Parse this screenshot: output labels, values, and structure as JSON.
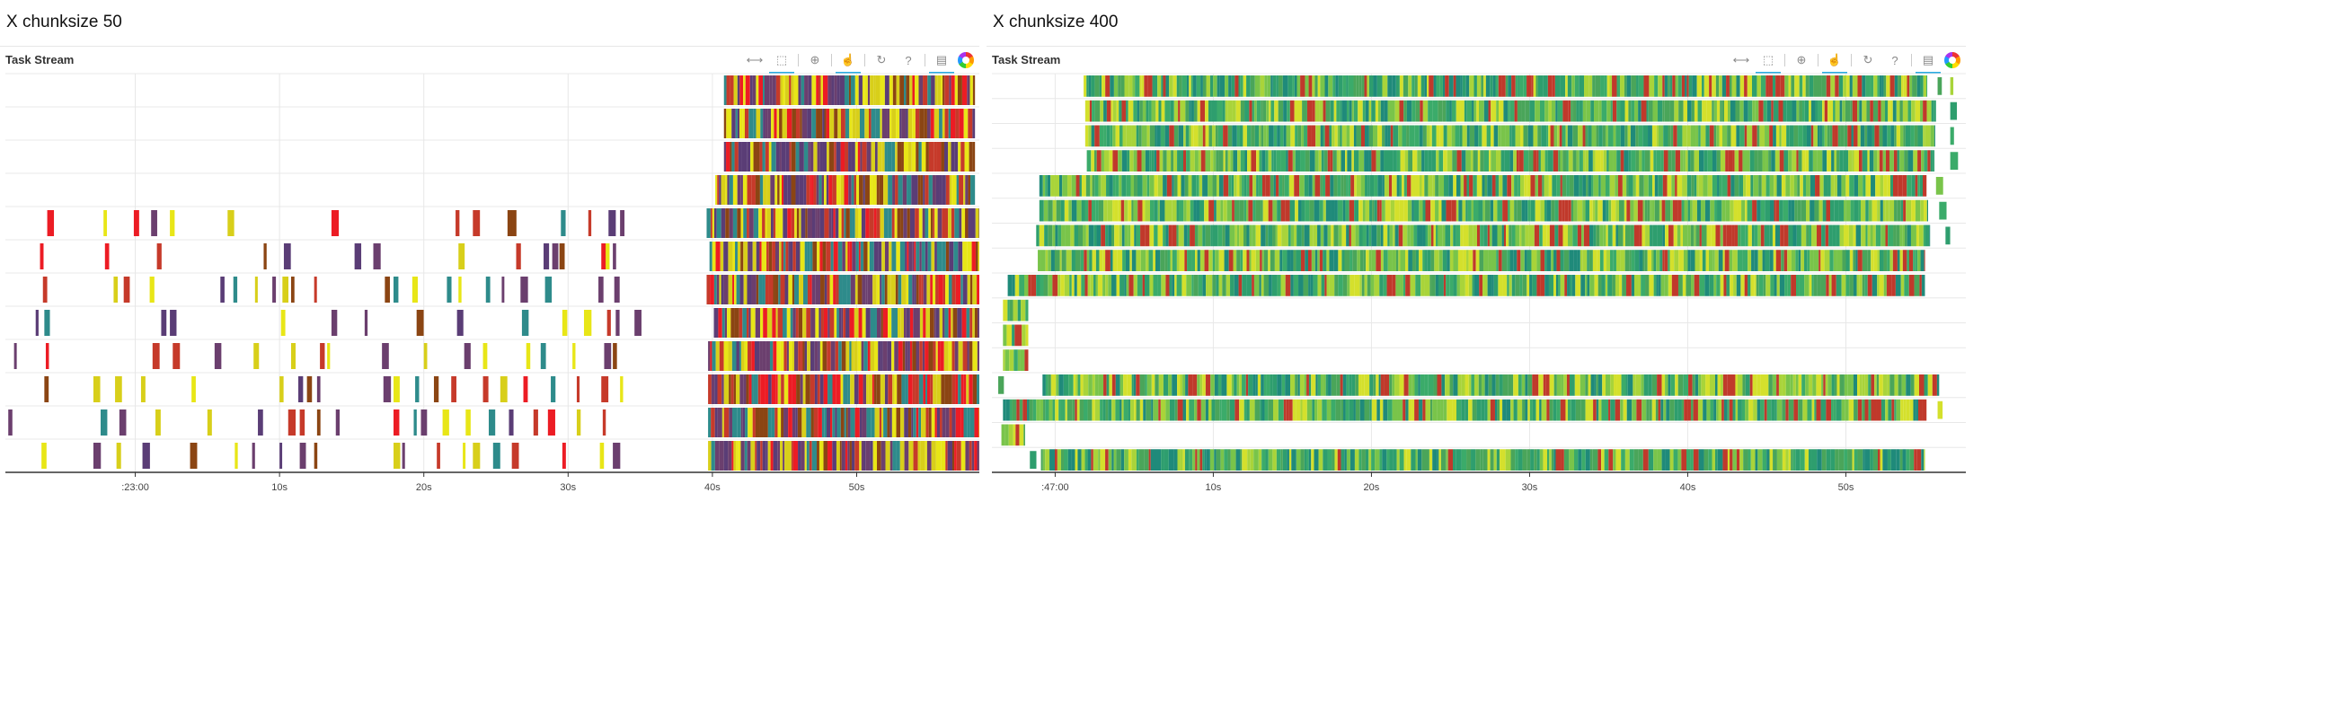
{
  "panels": [
    {
      "title": "X chunksize 50",
      "plot_title": "Task Stream",
      "toolbar": [
        "pan-icon",
        "box-zoom-icon",
        "wheel-zoom-icon",
        "tap-icon",
        "reset-icon",
        "help-icon",
        "hover-icon",
        "bokeh-logo-icon"
      ]
    },
    {
      "title": "X chunksize 400",
      "plot_title": "Task Stream",
      "toolbar": [
        "pan-icon",
        "box-zoom-icon",
        "wheel-zoom-icon",
        "tap-icon",
        "reset-icon",
        "help-icon",
        "hover-icon",
        "bokeh-logo-icon"
      ]
    }
  ],
  "colors": {
    "grid": "#e8e8e8",
    "axis": "#333333",
    "toolbar_active": "#26aae1",
    "panel1_palette": [
      "#e8e617",
      "#d8cf1a",
      "#c63a2a",
      "#ec1c24",
      "#5a3d76",
      "#6b3f6e",
      "#2e8b8b",
      "#8b4513"
    ],
    "panel2_palette": [
      "#2e9e6e",
      "#3bab6a",
      "#79c44a",
      "#a9d43a",
      "#d4e02c",
      "#1f8a7a",
      "#4aa55a",
      "#c0392b"
    ]
  },
  "chart_data": [
    {
      "type": "timeline",
      "title": "Task Stream",
      "xlabel": "",
      "ylabel": "",
      "xlim_seconds": [
        -9,
        58.5
      ],
      "x_ticks": [
        {
          "value": 0,
          "label": ":23:00"
        },
        {
          "value": 10,
          "label": "10s"
        },
        {
          "value": 20,
          "label": "20s"
        },
        {
          "value": 30,
          "label": "30s"
        },
        {
          "value": 40,
          "label": "40s"
        },
        {
          "value": 50,
          "label": "50s"
        }
      ],
      "rows": 12,
      "grid": true,
      "series": [
        {
          "row": 0,
          "dense_start": 40.8,
          "dense_end": 58.2,
          "sparse_tasks": []
        },
        {
          "row": 1,
          "dense_start": 40.8,
          "dense_end": 58.2,
          "sparse_tasks": []
        },
        {
          "row": 2,
          "dense_start": 40.8,
          "dense_end": 58.2,
          "sparse_tasks": []
        },
        {
          "row": 3,
          "dense_start": 40.2,
          "dense_end": 58.2,
          "sparse_tasks": []
        },
        {
          "row": 4,
          "dense_start": 39.6,
          "dense_end": 58.5,
          "sparse_tasks": [
            -6.1,
            -2.2,
            -0.1,
            1.1,
            2.4,
            6.4,
            13.6,
            22.2,
            23.4,
            25.8,
            26.1,
            29.5,
            31.4,
            32.8,
            33.6
          ]
        },
        {
          "row": 5,
          "dense_start": 39.8,
          "dense_end": 58.5,
          "sparse_tasks": [
            -6.6,
            -2.1,
            1.5,
            8.9,
            10.3,
            15.2,
            16.5,
            22.4,
            26.4,
            28.3,
            28.9,
            29.4,
            32.3,
            32.6,
            33.1
          ]
        },
        {
          "row": 6,
          "dense_start": 39.6,
          "dense_end": 58.5,
          "sparse_tasks": [
            -6.4,
            -1.5,
            -0.8,
            1.0,
            5.9,
            6.8,
            8.3,
            9.5,
            10.2,
            10.8,
            12.4,
            17.3,
            17.9,
            19.2,
            21.6,
            22.4,
            24.3,
            25.4,
            26.7,
            28.4,
            32.1,
            33.2
          ]
        },
        {
          "row": 7,
          "dense_start": 40.1,
          "dense_end": 58.5,
          "sparse_tasks": [
            -6.9,
            -6.3,
            1.8,
            2.4,
            10.1,
            13.6,
            15.9,
            19.5,
            22.3,
            26.8,
            29.6,
            31.1,
            32.7,
            33.3,
            34.6
          ]
        },
        {
          "row": 8,
          "dense_start": 39.7,
          "dense_end": 58.5,
          "sparse_tasks": [
            -8.4,
            -6.2,
            1.2,
            2.6,
            5.5,
            8.2,
            10.8,
            12.8,
            13.3,
            17.1,
            20.0,
            22.8,
            24.1,
            27.1,
            28.1,
            30.3,
            32.5,
            33.1
          ]
        },
        {
          "row": 9,
          "dense_start": 39.7,
          "dense_end": 58.5,
          "sparse_tasks": [
            -6.3,
            -2.9,
            -1.4,
            0.4,
            3.9,
            10.0,
            11.3,
            11.9,
            12.6,
            17.2,
            17.9,
            19.4,
            20.7,
            21.9,
            24.1,
            25.3,
            26.9,
            28.8,
            30.6,
            32.3,
            33.6
          ]
        },
        {
          "row": 10,
          "dense_start": 39.7,
          "dense_end": 58.5,
          "sparse_tasks": [
            -8.8,
            -2.4,
            -1.1,
            1.4,
            5.0,
            8.5,
            10.6,
            11.4,
            12.6,
            13.9,
            17.9,
            19.3,
            19.8,
            21.3,
            22.9,
            24.5,
            25.9,
            27.6,
            28.6,
            30.6,
            32.4
          ]
        },
        {
          "row": 11,
          "dense_start": 39.7,
          "dense_end": 58.5,
          "sparse_tasks": [
            -6.5,
            -2.9,
            -1.3,
            0.5,
            3.8,
            6.9,
            8.1,
            10.0,
            11.4,
            12.4,
            17.9,
            18.5,
            20.9,
            22.7,
            23.4,
            24.8,
            26.1,
            29.6,
            32.2,
            33.1
          ]
        }
      ]
    },
    {
      "type": "timeline",
      "title": "Task Stream",
      "xlabel": "",
      "ylabel": "",
      "xlim_seconds": [
        -4,
        57.7
      ],
      "x_ticks": [
        {
          "value": 0,
          "label": ":47:00"
        },
        {
          "value": 10,
          "label": "10s"
        },
        {
          "value": 20,
          "label": "20s"
        },
        {
          "value": 30,
          "label": "30s"
        },
        {
          "value": 40,
          "label": "40s"
        },
        {
          "value": 50,
          "label": "50s"
        }
      ],
      "rows": 16,
      "grid": true,
      "series": [
        {
          "row": 0,
          "dense_start": 1.8,
          "dense_end": 55.1,
          "sparse_tasks": [
            55.8,
            56.6
          ]
        },
        {
          "row": 1,
          "dense_start": 1.9,
          "dense_end": 55.7,
          "sparse_tasks": [
            56.6
          ]
        },
        {
          "row": 2,
          "dense_start": 1.9,
          "dense_end": 55.6,
          "sparse_tasks": [
            56.6
          ]
        },
        {
          "row": 3,
          "dense_start": 2.0,
          "dense_end": 55.6,
          "sparse_tasks": [
            56.6
          ]
        },
        {
          "row": 4,
          "dense_start": -1.0,
          "dense_end": 55.1,
          "sparse_tasks": [
            55.7
          ]
        },
        {
          "row": 5,
          "dense_start": -1.0,
          "dense_end": 55.2,
          "sparse_tasks": [
            55.9
          ]
        },
        {
          "row": 6,
          "dense_start": -1.2,
          "dense_end": 55.3,
          "sparse_tasks": [
            56.3
          ]
        },
        {
          "row": 7,
          "dense_start": -1.1,
          "dense_end": 55.0,
          "sparse_tasks": []
        },
        {
          "row": 8,
          "dense_start": -3.0,
          "dense_end": 55.0,
          "sparse_tasks": []
        },
        {
          "row": 9,
          "dense_start": -3.3,
          "dense_end": -1.7,
          "sparse_tasks": []
        },
        {
          "row": 10,
          "dense_start": -3.3,
          "dense_end": -1.7,
          "sparse_tasks": []
        },
        {
          "row": 11,
          "dense_start": -3.3,
          "dense_end": -1.7,
          "sparse_tasks": []
        },
        {
          "row": 12,
          "dense_start": -0.8,
          "dense_end": 55.9,
          "sparse_tasks": [
            -3.6
          ]
        },
        {
          "row": 13,
          "dense_start": -3.3,
          "dense_end": 55.1,
          "sparse_tasks": [
            55.8
          ]
        },
        {
          "row": 14,
          "dense_start": -3.4,
          "dense_end": -1.9,
          "sparse_tasks": []
        },
        {
          "row": 15,
          "dense_start": -0.9,
          "dense_end": 55.0,
          "sparse_tasks": [
            -1.6
          ]
        }
      ]
    }
  ]
}
